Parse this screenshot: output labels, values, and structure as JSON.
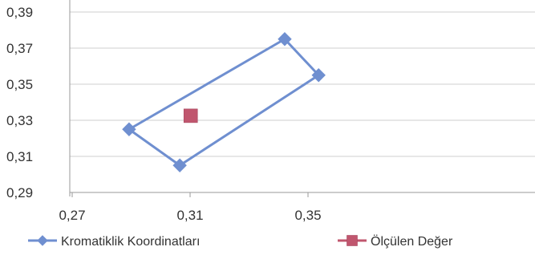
{
  "chart_data": {
    "type": "scatter",
    "title": "",
    "xlabel": "",
    "ylabel": "",
    "xlim": [
      0.27,
      0.39
    ],
    "ylim": [
      0.29,
      0.39
    ],
    "x_ticks": [
      "0,27",
      "0,31",
      "0,35"
    ],
    "y_ticks": [
      "0,29",
      "0,31",
      "0,33",
      "0,35",
      "0,37",
      "0,39"
    ],
    "grid": "horizontal",
    "legend_position": "bottom",
    "series": [
      {
        "name": "Kromatiklik Koordinatları",
        "marker": "diamond",
        "line": true,
        "closed": true,
        "color": "#6F8FD0",
        "points": [
          {
            "x": 0.2893,
            "y": 0.325
          },
          {
            "x": 0.3065,
            "y": 0.305
          },
          {
            "x": 0.3536,
            "y": 0.355
          },
          {
            "x": 0.3421,
            "y": 0.375
          },
          {
            "x": 0.2893,
            "y": 0.325
          }
        ]
      },
      {
        "name": "Ölçülen Değer",
        "marker": "square",
        "line": false,
        "color": "#C0566E",
        "points": [
          {
            "x": 0.3102,
            "y": 0.3325
          }
        ]
      }
    ]
  }
}
